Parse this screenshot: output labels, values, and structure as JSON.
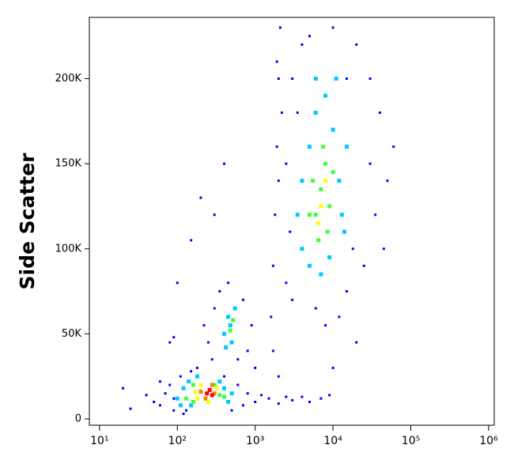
{
  "chart_data": {
    "type": "scatter",
    "y_label": "Side Scatter",
    "xscale": "log",
    "xlim": [
      7.4,
      1180000
    ],
    "ylim": [
      -3700,
      236000
    ],
    "xticks": [
      {
        "value": 10,
        "label": "10¹"
      },
      {
        "value": 100,
        "label": "10²"
      },
      {
        "value": 1000,
        "label": "10³"
      },
      {
        "value": 10000,
        "label": "10⁴"
      },
      {
        "value": 100000,
        "label": "10⁵"
      },
      {
        "value": 1000000,
        "label": "10⁶"
      }
    ],
    "yticks": [
      0,
      {
        "value": 50000,
        "label": "50K"
      },
      {
        "value": 100000,
        "label": "100K"
      },
      {
        "value": 150000,
        "label": "150K"
      },
      {
        "value": 200000,
        "label": "200K"
      }
    ],
    "series": [
      {
        "color": "#0000ff",
        "x": [
          60,
          70,
          80,
          90,
          110,
          120,
          150,
          180,
          400,
          600,
          700,
          500,
          90,
          130,
          50,
          800,
          40,
          20,
          25,
          60,
          1000,
          1500,
          2000,
          3000,
          4000,
          5000,
          7000,
          9000,
          1200,
          2500,
          250,
          300,
          350,
          700,
          800,
          600,
          280,
          900,
          220,
          450,
          1700,
          1800,
          1900,
          2000,
          2100,
          1600,
          1700,
          2200,
          1900,
          2000,
          2500,
          3000,
          15000,
          25000,
          30000,
          35000,
          40000,
          20000,
          10000,
          5000,
          3000,
          2500,
          2800,
          45000,
          60000,
          12000,
          8000,
          6000,
          20000,
          50000,
          3500,
          4000,
          15000,
          30000,
          18000,
          80,
          100,
          150,
          200,
          400,
          300,
          90,
          1000,
          2000,
          10000
        ],
        "y": [
          8000,
          15000,
          20000,
          5000,
          25000,
          3000,
          28000,
          30000,
          25000,
          20000,
          8000,
          5000,
          12000,
          5000,
          10000,
          15000,
          14000,
          18000,
          6000,
          22000,
          10000,
          12000,
          9000,
          11000,
          13000,
          10000,
          12000,
          14000,
          14000,
          13000,
          45000,
          65000,
          75000,
          70000,
          40000,
          35000,
          35000,
          55000,
          55000,
          80000,
          90000,
          120000,
          160000,
          200000,
          230000,
          60000,
          40000,
          180000,
          210000,
          140000,
          80000,
          70000,
          75000,
          90000,
          150000,
          120000,
          180000,
          220000,
          230000,
          225000,
          200000,
          150000,
          110000,
          100000,
          160000,
          60000,
          55000,
          65000,
          45000,
          140000,
          180000,
          220000,
          200000,
          200000,
          100000,
          45000,
          80000,
          105000,
          130000,
          150000,
          120000,
          48000,
          30000,
          25000,
          30000
        ]
      },
      {
        "color": "#00c8ff",
        "x": [
          100,
          120,
          150,
          350,
          400,
          450,
          140,
          110,
          500,
          180,
          400,
          450,
          500,
          550,
          480,
          420,
          4000,
          5000,
          6000,
          8000,
          10000,
          12000,
          14000,
          9000,
          5000,
          4000,
          3500,
          7000,
          11000,
          6000,
          15000,
          13000
        ],
        "y": [
          12000,
          18000,
          8000,
          22000,
          18000,
          10000,
          22000,
          8000,
          15000,
          25000,
          50000,
          60000,
          45000,
          65000,
          55000,
          42000,
          100000,
          160000,
          180000,
          190000,
          170000,
          140000,
          110000,
          95000,
          90000,
          140000,
          120000,
          85000,
          200000,
          200000,
          160000,
          120000
        ]
      },
      {
        "color": "#40ff40",
        "x": [
          130,
          160,
          350,
          300,
          160,
          400,
          480,
          520,
          6000,
          7000,
          8000,
          6500,
          5500,
          9000,
          7500,
          8500,
          5000,
          10000
        ],
        "y": [
          12000,
          20000,
          14000,
          20000,
          10000,
          13000,
          52000,
          58000,
          120000,
          135000,
          150000,
          105000,
          140000,
          125000,
          160000,
          110000,
          120000,
          145000
        ]
      },
      {
        "color": "#ffff00",
        "x": [
          180,
          200,
          320,
          250,
          170,
          7000,
          6500,
          8000
        ],
        "y": [
          12000,
          20000,
          18000,
          10000,
          16000,
          125000,
          115000,
          140000
        ]
      },
      {
        "color": "#ff8000",
        "x": [
          200,
          230,
          300,
          280
        ],
        "y": [
          16000,
          12000,
          15000,
          20000
        ]
      },
      {
        "color": "#ff0000",
        "x": [
          240,
          260,
          280
        ],
        "y": [
          15000,
          17000,
          14000
        ]
      }
    ]
  }
}
